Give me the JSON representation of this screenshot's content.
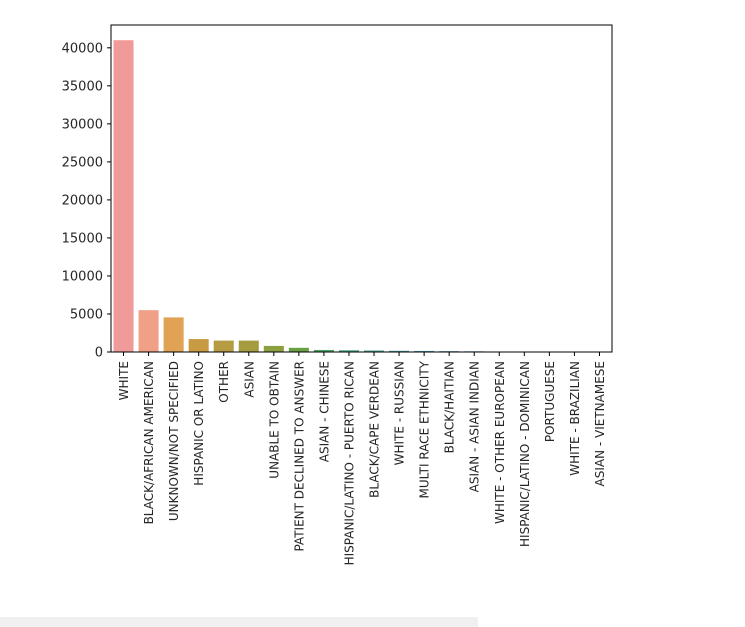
{
  "chart_data": {
    "type": "bar",
    "title": "",
    "xlabel": "",
    "ylabel": "",
    "ylim": [
      0,
      43000
    ],
    "yticks": [
      0,
      5000,
      10000,
      15000,
      20000,
      25000,
      30000,
      35000,
      40000
    ],
    "categories": [
      "WHITE",
      "BLACK/AFRICAN AMERICAN",
      "UNKNOWN/NOT SPECIFIED",
      "HISPANIC OR LATINO",
      "OTHER",
      "ASIAN",
      "UNABLE TO OBTAIN",
      "PATIENT DECLINED TO ANSWER",
      "ASIAN - CHINESE",
      "HISPANIC/LATINO - PUERTO RICAN",
      "BLACK/CAPE VERDEAN",
      "WHITE - RUSSIAN",
      "MULTI RACE ETHNICITY",
      "BLACK/HAITIAN",
      "ASIAN - ASIAN INDIAN",
      "WHITE - OTHER EUROPEAN",
      "HISPANIC/LATINO - DOMINICAN",
      "PORTUGUESE",
      "WHITE - BRAZILIAN",
      "ASIAN - VIETNAMESE"
    ],
    "values": [
      41000,
      5500,
      4550,
      1700,
      1500,
      1500,
      800,
      550,
      270,
      230,
      200,
      160,
      140,
      110,
      90,
      60,
      50,
      40,
      30,
      20
    ],
    "colors": [
      "#f19a9a",
      "#f0a086",
      "#e0a254",
      "#c89a42",
      "#b79b42",
      "#a59c3f",
      "#8ba03f",
      "#67a143",
      "#4aa364",
      "#47a37e",
      "#49a190",
      "#4a9ea0",
      "#4c9cae",
      "#4e99bd",
      "#5d93d3",
      "#8a8ae0",
      "#ab83e2",
      "#c57be0",
      "#dd79c8",
      "#ea82ad"
    ],
    "grid": false,
    "legend": "none"
  }
}
